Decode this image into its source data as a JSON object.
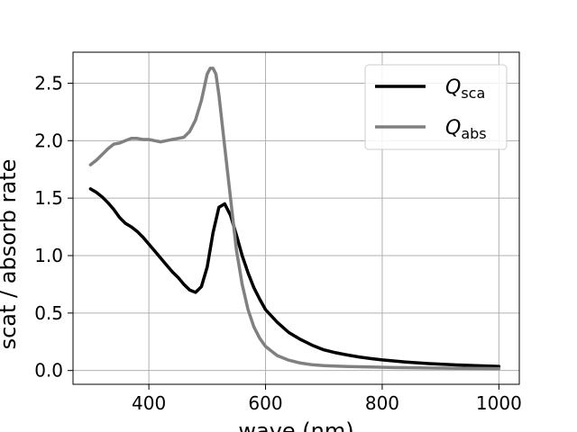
{
  "chart_data": {
    "type": "line",
    "title": "",
    "xlabel": "wave (nm)",
    "ylabel": "scat / absorb rate",
    "xlim": [
      270,
      1035
    ],
    "ylim": [
      -0.12,
      2.77
    ],
    "xticks": [
      400,
      600,
      800,
      1000
    ],
    "yticks": [
      0.0,
      0.5,
      1.0,
      1.5,
      2.0,
      2.5
    ],
    "xtick_labels": [
      "400",
      "600",
      "800",
      "1000"
    ],
    "ytick_labels": [
      "0.0",
      "0.5",
      "1.0",
      "1.5",
      "2.0",
      "2.5"
    ],
    "grid": true,
    "legend_position": "top-right",
    "series": [
      {
        "name": "Q_sca",
        "label_main": "Q",
        "label_sub": "sca",
        "color": "#000000",
        "x": [
          300,
          310,
          320,
          330,
          340,
          350,
          360,
          370,
          380,
          390,
          400,
          410,
          420,
          430,
          440,
          450,
          460,
          470,
          480,
          490,
          500,
          510,
          520,
          530,
          540,
          550,
          560,
          570,
          580,
          590,
          600,
          620,
          640,
          660,
          680,
          700,
          720,
          740,
          760,
          780,
          800,
          840,
          880,
          920,
          960,
          1000
        ],
        "y": [
          1.58,
          1.55,
          1.51,
          1.46,
          1.4,
          1.33,
          1.28,
          1.25,
          1.21,
          1.16,
          1.1,
          1.04,
          0.98,
          0.92,
          0.86,
          0.81,
          0.75,
          0.7,
          0.68,
          0.73,
          0.9,
          1.2,
          1.42,
          1.45,
          1.35,
          1.18,
          1.0,
          0.85,
          0.72,
          0.62,
          0.53,
          0.42,
          0.33,
          0.27,
          0.22,
          0.18,
          0.155,
          0.135,
          0.118,
          0.104,
          0.092,
          0.074,
          0.06,
          0.05,
          0.042,
          0.036
        ]
      },
      {
        "name": "Q_abs",
        "label_main": "Q",
        "label_sub": "abs",
        "color": "#808080",
        "x": [
          300,
          310,
          320,
          330,
          340,
          350,
          360,
          370,
          380,
          390,
          400,
          410,
          420,
          430,
          440,
          450,
          460,
          470,
          480,
          490,
          500,
          505,
          510,
          515,
          520,
          530,
          540,
          550,
          560,
          570,
          580,
          590,
          600,
          620,
          640,
          660,
          680,
          700,
          740,
          780,
          820,
          880,
          940,
          1000
        ],
        "y": [
          1.79,
          1.83,
          1.88,
          1.93,
          1.97,
          1.98,
          2.0,
          2.02,
          2.02,
          2.01,
          2.01,
          2.0,
          1.99,
          2.0,
          2.01,
          2.02,
          2.03,
          2.08,
          2.18,
          2.35,
          2.58,
          2.63,
          2.63,
          2.58,
          2.4,
          1.95,
          1.5,
          1.05,
          0.75,
          0.53,
          0.38,
          0.28,
          0.21,
          0.13,
          0.09,
          0.065,
          0.05,
          0.042,
          0.035,
          0.03,
          0.026,
          0.022,
          0.019,
          0.016
        ]
      }
    ]
  }
}
